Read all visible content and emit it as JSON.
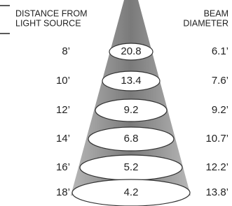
{
  "header": {
    "left": [
      "DISTANCE FROM",
      "LIGHT SOURCE"
    ],
    "right": [
      "BEAM",
      "DIAMETER"
    ]
  },
  "rows": [
    {
      "distance": "8’",
      "center": "20.8",
      "diameter": "6.1’"
    },
    {
      "distance": "10’",
      "center": "13.4",
      "diameter": "7.6’"
    },
    {
      "distance": "12’",
      "center": "9.2",
      "diameter": "9.2’"
    },
    {
      "distance": "14’",
      "center": "6.8",
      "diameter": "10.7’"
    },
    {
      "distance": "16’",
      "center": "5.2",
      "diameter": "12.2’"
    },
    {
      "distance": "18’",
      "center": "4.2",
      "diameter": "13.8’"
    }
  ]
}
